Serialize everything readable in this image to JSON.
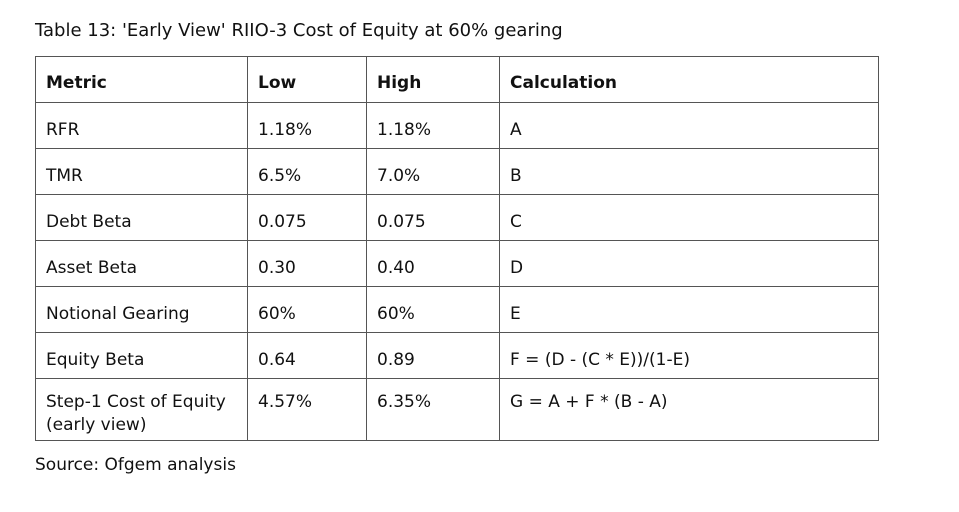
{
  "caption": "Table 13: 'Early View' RIIO-3 Cost of Equity at 60% gearing",
  "table": {
    "headers": [
      "Metric",
      "Low",
      "High",
      "Calculation"
    ],
    "rows": [
      [
        "RFR",
        "1.18%",
        "1.18%",
        "A"
      ],
      [
        "TMR",
        "6.5%",
        "7.0%",
        "B"
      ],
      [
        "Debt Beta",
        "0.075",
        "0.075",
        "C"
      ],
      [
        "Asset Beta",
        "0.30",
        "0.40",
        "D"
      ],
      [
        "Notional Gearing",
        "60%",
        "60%",
        "E"
      ],
      [
        "Equity Beta",
        "0.64",
        "0.89",
        "F = (D - (C * E))/(1-E)"
      ],
      [
        "Step-1 Cost of Equity (early view)",
        "4.57%",
        "6.35%",
        "G = A + F * (B - A)"
      ]
    ]
  },
  "source": "Source: Ofgem analysis"
}
